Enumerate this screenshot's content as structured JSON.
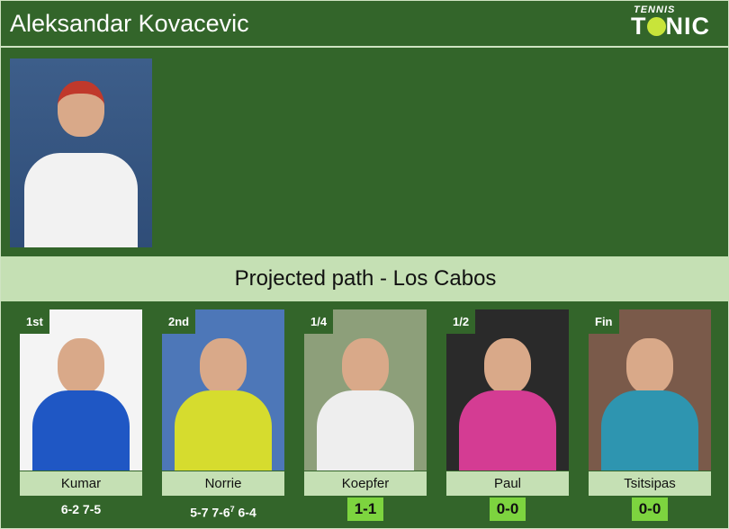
{
  "header": {
    "player_name": "Aleksandar Kovacevic",
    "logo_top": "TENNIS",
    "logo_left": "T",
    "logo_right": "NIC"
  },
  "band": {
    "title": "Projected path - Los Cabos"
  },
  "path": [
    {
      "round": "1st",
      "opponent": "Kumar",
      "result": "6-2 7-5",
      "type": "score",
      "bg": "#f4f4f4",
      "shirt": "#1f57c4"
    },
    {
      "round": "2nd",
      "opponent": "Norrie",
      "result_parts": [
        "5-7 7-6",
        "7",
        " 6-4"
      ],
      "type": "score",
      "bg": "#4d77b8",
      "shirt": "#d6dc2e"
    },
    {
      "round": "1/4",
      "opponent": "Koepfer",
      "result": "1-1",
      "type": "h2h",
      "bg": "#8d9f7a",
      "shirt": "#eeeeee"
    },
    {
      "round": "1/2",
      "opponent": "Paul",
      "result": "0-0",
      "type": "h2h",
      "bg": "#2a2a2a",
      "shirt": "#d43c93"
    },
    {
      "round": "Fin",
      "opponent": "Tsitsipas",
      "result": "0-0",
      "type": "h2h",
      "bg": "#7a5a4a",
      "shirt": "#2e95b0"
    }
  ]
}
